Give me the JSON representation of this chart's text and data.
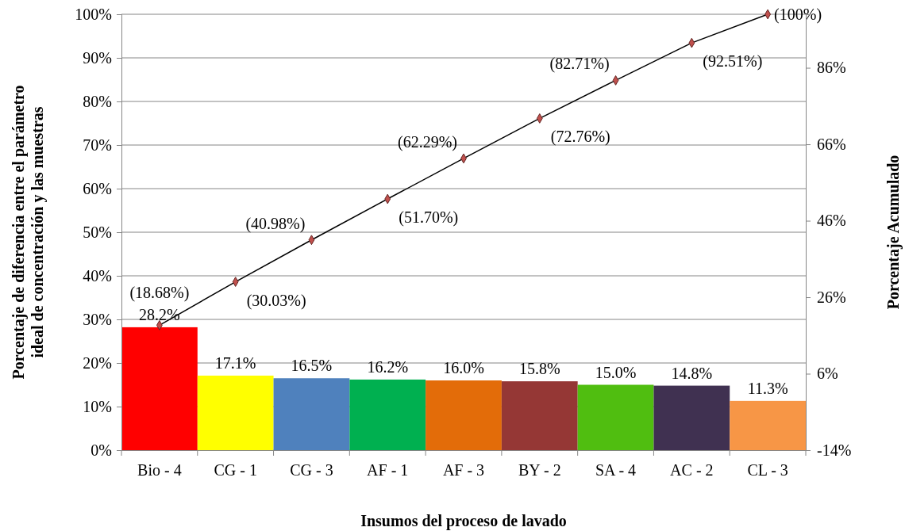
{
  "chart_data": {
    "type": "bar",
    "xlabel": "Insumos del proceso de lavado",
    "ylabel": "Porcentaje de diferencia entre el parámetro ideal de concentración y las muestras",
    "y2label": "Porcentaje Acumulado",
    "categories": [
      "Bio - 4",
      "CG - 1",
      "CG - 3",
      "AF - 1",
      "AF - 3",
      "BY - 2",
      "SA - 4",
      "AC - 2",
      "CL  - 3"
    ],
    "series": [
      {
        "values": [
          28.2,
          17.1,
          16.5,
          16.2,
          16.0,
          15.8,
          15.0,
          14.8,
          11.3
        ],
        "colors": [
          "#ff0000",
          "#ffff00",
          "#4f81bd",
          "#00b050",
          "#e36c09",
          "#953735",
          "#50be10",
          "#403151",
          "#f79646"
        ],
        "value_labels": [
          "28.2%",
          "17.1%",
          "16.5%",
          "16.2%",
          "16.0%",
          "15.8%",
          "15.0%",
          "14.8%",
          "11.3%"
        ]
      },
      {
        "type": "line",
        "axis": "y2",
        "color": "#000000",
        "marker": "diamond",
        "values": [
          18.68,
          30.03,
          40.98,
          51.7,
          62.29,
          72.76,
          82.71,
          92.51,
          100
        ],
        "value_labels": [
          "(18.68%)",
          "(30.03%)",
          "(40.98%)",
          "(51.70%)",
          "(62.29%)",
          "(72.76%)",
          "(82.71%)",
          "(92.51%)",
          "(100%)"
        ]
      }
    ],
    "ylim": [
      0,
      100
    ],
    "yticks": [
      {
        "value": 0,
        "label": "0%"
      },
      {
        "value": 10,
        "label": "10%"
      },
      {
        "value": 20,
        "label": "20%"
      },
      {
        "value": 30,
        "label": "30%"
      },
      {
        "value": 40,
        "label": "40%"
      },
      {
        "value": 50,
        "label": "50%"
      },
      {
        "value": 60,
        "label": "60%"
      },
      {
        "value": 70,
        "label": "70%"
      },
      {
        "value": 80,
        "label": "80%"
      },
      {
        "value": 90,
        "label": "90%"
      },
      {
        "value": 100,
        "label": "100%"
      }
    ],
    "y2lim": [
      -14,
      100
    ],
    "y2ticks": [
      {
        "value": -14,
        "label": "-14%"
      },
      {
        "value": 6,
        "label": "6%"
      },
      {
        "value": 26,
        "label": "26%"
      },
      {
        "value": 46,
        "label": "46%"
      },
      {
        "value": 66,
        "label": "66%"
      },
      {
        "value": 86,
        "label": "86%"
      }
    ],
    "grid": "y"
  }
}
